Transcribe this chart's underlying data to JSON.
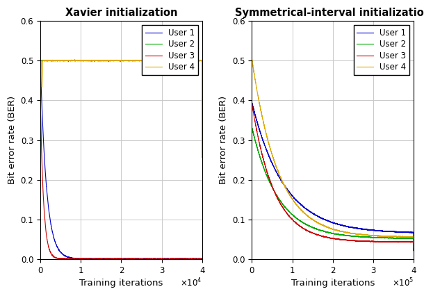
{
  "title1": "Xavier initialization",
  "title2": "Symmetrical-interval initialization",
  "xlabel": "Training iterations",
  "ylabel": "Bit error rate (BER)",
  "ylim": [
    0,
    0.6
  ],
  "xlim1": [
    0,
    40000
  ],
  "xlim2": [
    0,
    400000
  ],
  "xticks1": [
    0,
    10000,
    20000,
    30000,
    40000
  ],
  "xtick1_labels": [
    "0",
    "1",
    "2",
    "3",
    "4"
  ],
  "xticks2": [
    0,
    100000,
    200000,
    300000,
    400000
  ],
  "xtick2_labels": [
    "0",
    "1",
    "2",
    "3",
    "4"
  ],
  "yticks": [
    0,
    0.1,
    0.2,
    0.3,
    0.4,
    0.5,
    0.6
  ],
  "legend_labels": [
    "User 1",
    "User 2",
    "User 3",
    "User 4"
  ],
  "colors": [
    "#0000cc",
    "#00aa00",
    "#cc0000",
    "#ddaa00"
  ],
  "line_width": 0.8,
  "background_color": "#ffffff",
  "grid_color": "#c8c8c8"
}
